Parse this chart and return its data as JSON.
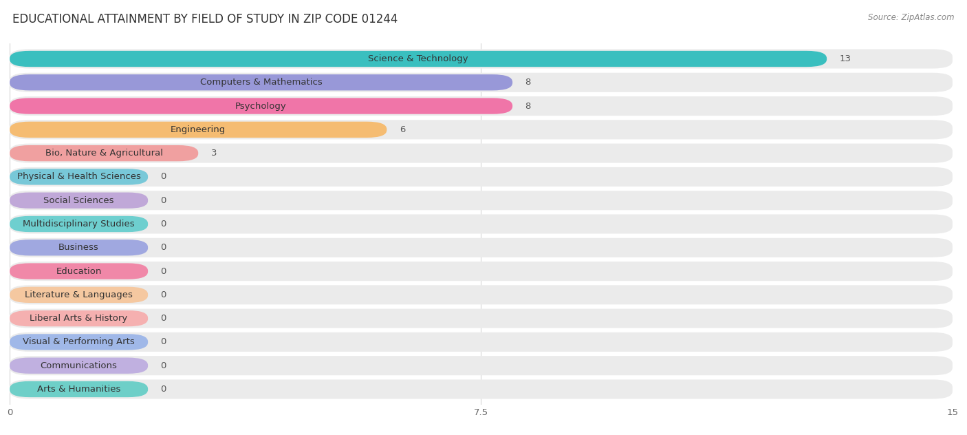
{
  "title": "EDUCATIONAL ATTAINMENT BY FIELD OF STUDY IN ZIP CODE 01244",
  "source": "Source: ZipAtlas.com",
  "categories": [
    "Science & Technology",
    "Computers & Mathematics",
    "Psychology",
    "Engineering",
    "Bio, Nature & Agricultural",
    "Physical & Health Sciences",
    "Social Sciences",
    "Multidisciplinary Studies",
    "Business",
    "Education",
    "Literature & Languages",
    "Liberal Arts & History",
    "Visual & Performing Arts",
    "Communications",
    "Arts & Humanities"
  ],
  "values": [
    13,
    8,
    8,
    6,
    3,
    0,
    0,
    0,
    0,
    0,
    0,
    0,
    0,
    0,
    0
  ],
  "bar_colors": [
    "#3abfbf",
    "#9898d8",
    "#f075a8",
    "#f5bc72",
    "#f0a0a0",
    "#78c8d8",
    "#c0a8d8",
    "#6ecfcf",
    "#a0a8e0",
    "#f088a8",
    "#f5c8a0",
    "#f5b0b0",
    "#a0b8e8",
    "#c0b0e0",
    "#6ecfc8"
  ],
  "xlim": [
    0,
    15
  ],
  "xticks": [
    0,
    7.5,
    15
  ],
  "background_color": "#ffffff",
  "bar_bg_color": "#ebebeb",
  "title_fontsize": 12,
  "label_fontsize": 9.5,
  "value_fontsize": 9.5,
  "min_bar_width": 2.2
}
